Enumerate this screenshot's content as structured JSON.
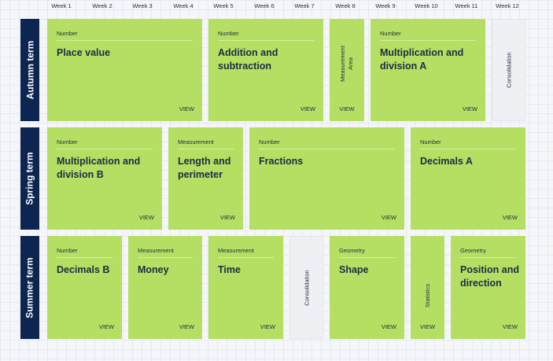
{
  "weeks": [
    "Week 1",
    "Week 2",
    "Week 3",
    "Week 4",
    "Week 5",
    "Week 6",
    "Week 7",
    "Week 8",
    "Week 9",
    "Week 10",
    "Week 11",
    "Week 12"
  ],
  "terms": {
    "autumn": "Autumn term",
    "spring": "Spring term",
    "summer": "Summer term"
  },
  "view_label": "VIEW",
  "autumn": {
    "place_value": {
      "category": "Number",
      "title": "Place value"
    },
    "addition": {
      "category": "Number",
      "title": "Addition and subtraction"
    },
    "area": {
      "category": "Measurement",
      "title": "Area"
    },
    "mult_a": {
      "category": "Number",
      "title": "Multiplication and division A"
    },
    "consolidation": "Consolidation"
  },
  "spring": {
    "mult_b": {
      "category": "Number",
      "title": "Multiplication and division B"
    },
    "length": {
      "category": "Measurement",
      "title": "Length and perimeter"
    },
    "fractions": {
      "category": "Number",
      "title": "Fractions"
    },
    "decimals_a": {
      "category": "Number",
      "title": "Decimals A"
    }
  },
  "summer": {
    "decimals_b": {
      "category": "Number",
      "title": "Decimals B"
    },
    "money": {
      "category": "Measurement",
      "title": "Money"
    },
    "time": {
      "category": "Measurement",
      "title": "Time"
    },
    "consolidation": "Consolidation",
    "shape": {
      "category": "Geometry",
      "title": "Shape"
    },
    "statistics": "Statistics",
    "position": {
      "category": "Geometry",
      "title": "Position and direction"
    }
  }
}
